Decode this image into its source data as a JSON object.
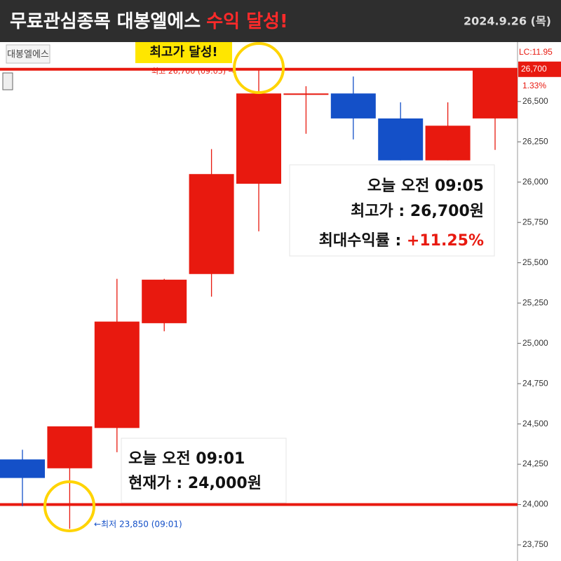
{
  "header": {
    "title": "무료관심종목 대봉엘에스",
    "highlight": "수익 달성!",
    "date": "2024.9.26 (목)"
  },
  "chart_data": {
    "type": "candlestick",
    "label": "대봉엘에스",
    "up_color": "#e8190f",
    "down_color": "#1450c8",
    "candles": [
      {
        "open": 24280,
        "high": 24340,
        "low": 23990,
        "close": 24165
      },
      {
        "open": 24225,
        "high": 24485,
        "low": 23850,
        "close": 24485
      },
      {
        "open": 24475,
        "high": 25400,
        "low": 24325,
        "close": 25135
      },
      {
        "open": 25125,
        "high": 25400,
        "low": 25075,
        "close": 25395
      },
      {
        "open": 25430,
        "high": 26205,
        "low": 25290,
        "close": 26050
      },
      {
        "open": 25990,
        "high": 26700,
        "low": 25695,
        "close": 26550
      },
      {
        "open": 26550,
        "high": 26595,
        "low": 26300,
        "close": 26550
      },
      {
        "open": 26550,
        "high": 26655,
        "low": 26265,
        "close": 26395
      },
      {
        "open": 26395,
        "high": 26495,
        "low": 26135,
        "close": 26135
      },
      {
        "open": 26135,
        "high": 26495,
        "low": 26135,
        "close": 26350
      },
      {
        "open": 26395,
        "high": 26700,
        "low": 26200,
        "close": 26700
      }
    ],
    "ylim": [
      23650,
      26860
    ],
    "yticks": [
      {
        "value": 23750,
        "label": "23,750"
      },
      {
        "value": 24000,
        "label": "24,000"
      },
      {
        "value": 24250,
        "label": "24,250"
      },
      {
        "value": 24500,
        "label": "24,500"
      },
      {
        "value": 24750,
        "label": "24,750"
      },
      {
        "value": 25000,
        "label": "25,000"
      },
      {
        "value": 25250,
        "label": "25,250"
      },
      {
        "value": 25500,
        "label": "25,500"
      },
      {
        "value": 25750,
        "label": "25,750"
      },
      {
        "value": 26000,
        "label": "26,000"
      },
      {
        "value": 26250,
        "label": "26,250"
      },
      {
        "value": 26500,
        "label": "26,500"
      }
    ],
    "reference_lines": [
      26700,
      24000
    ],
    "reference_color": "#e8190f",
    "price_tag": {
      "value": 26700,
      "label": "26,700",
      "change": "1.33%",
      "lc": "LC:11.95"
    },
    "high_badge": "최고가 달성!",
    "high_note": "최고 26,700 (09:05) →",
    "low_note": "←최저 23,850 (09:01)",
    "box_high": {
      "time": "오늘 오전 09:05",
      "price": "최고가 : 26,700원",
      "rate_label": "최대수익률 : ",
      "rate": "+11.25%"
    },
    "box_low": {
      "time": "오늘 오전 09:01",
      "price": "현재가 : 24,000원"
    }
  }
}
